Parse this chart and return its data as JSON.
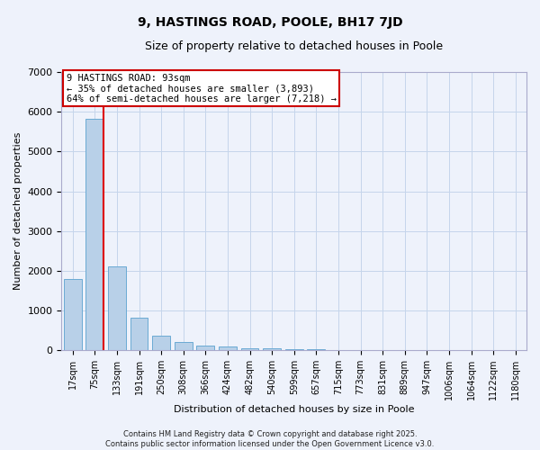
{
  "title1": "9, HASTINGS ROAD, POOLE, BH17 7JD",
  "title2": "Size of property relative to detached houses in Poole",
  "xlabel": "Distribution of detached houses by size in Poole",
  "ylabel": "Number of detached properties",
  "categories": [
    "17sqm",
    "75sqm",
    "133sqm",
    "191sqm",
    "250sqm",
    "308sqm",
    "366sqm",
    "424sqm",
    "482sqm",
    "540sqm",
    "599sqm",
    "657sqm",
    "715sqm",
    "773sqm",
    "831sqm",
    "889sqm",
    "947sqm",
    "1006sqm",
    "1064sqm",
    "1122sqm",
    "1180sqm"
  ],
  "values": [
    1800,
    5820,
    2100,
    820,
    375,
    220,
    120,
    90,
    60,
    50,
    30,
    20,
    15,
    11,
    8,
    6,
    5,
    4,
    3,
    2,
    1
  ],
  "bar_color": "#b8d0e8",
  "bar_edge_color": "#6aaad4",
  "red_line_color": "#dd0000",
  "annotation_text": "9 HASTINGS ROAD: 93sqm\n← 35% of detached houses are smaller (3,893)\n64% of semi-detached houses are larger (7,218) →",
  "annotation_box_color": "#ffffff",
  "annotation_box_edge": "#cc0000",
  "ylim": [
    0,
    7000
  ],
  "yticks": [
    0,
    1000,
    2000,
    3000,
    4000,
    5000,
    6000,
    7000
  ],
  "footer": "Contains HM Land Registry data © Crown copyright and database right 2025.\nContains public sector information licensed under the Open Government Licence v3.0.",
  "background_color": "#eef2fb",
  "grid_color": "#c5d5eb",
  "title_fontsize": 10,
  "subtitle_fontsize": 9,
  "tick_fontsize": 7,
  "ylabel_fontsize": 8,
  "xlabel_fontsize": 8,
  "footer_fontsize": 6,
  "annot_fontsize": 7.5
}
